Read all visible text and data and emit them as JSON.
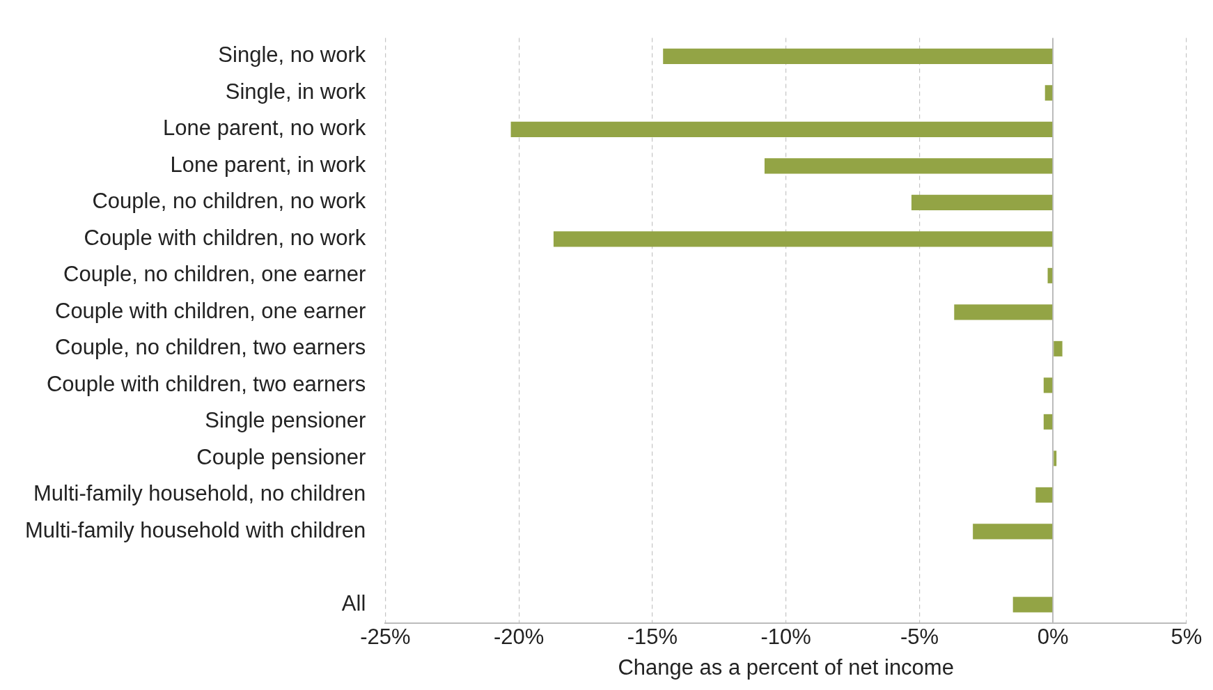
{
  "chart_data": {
    "type": "bar",
    "orientation": "horizontal",
    "xlabel": "Change as a percent of net income",
    "categories": [
      "Single, no work",
      "Single, in work",
      "Lone parent, no work",
      "Lone parent, in work",
      "Couple, no children, no work",
      "Couple with children, no work",
      "Couple, no children, one earner",
      "Couple with children, one earner",
      "Couple, no children, two earners",
      "Couple with children, two earners",
      "Single pensioner",
      "Couple pensioner",
      "Multi-family household, no children",
      "Multi-family household with children",
      null,
      "All"
    ],
    "values": [
      -14.6,
      -0.3,
      -20.3,
      -10.8,
      -5.3,
      -18.7,
      -0.2,
      -3.7,
      0.35,
      -0.35,
      -0.35,
      0.13,
      -0.65,
      -3.0,
      null,
      -1.5
    ],
    "color": "#93a445",
    "xlim": [
      -25,
      5
    ],
    "xticks": [
      {
        "value": -25,
        "label": "-25%"
      },
      {
        "value": -20,
        "label": "-20%"
      },
      {
        "value": -15,
        "label": "-15%"
      },
      {
        "value": -10,
        "label": "-10%"
      },
      {
        "value": -5,
        "label": "-5%"
      },
      {
        "value": 0,
        "label": "0%"
      },
      {
        "value": 5,
        "label": "5%"
      }
    ],
    "grid": "x",
    "legend": false
  }
}
